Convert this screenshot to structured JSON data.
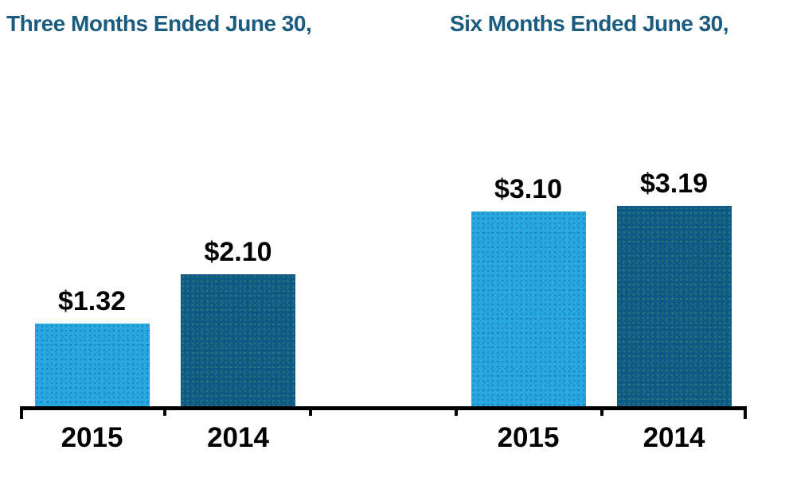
{
  "chart_data": {
    "type": "bar",
    "title": "",
    "xlabel": "",
    "ylabel": "",
    "ylim": [
      0,
      3.5
    ],
    "grid": false,
    "legend": false,
    "value_prefix": "$",
    "groups": [
      {
        "title": "Three Months Ended June 30,",
        "categories": [
          "2015",
          "2014"
        ],
        "bars": [
          {
            "category": "2015",
            "value": 1.32,
            "label": "$1.32",
            "color": "#29A8E0",
            "tone": "light"
          },
          {
            "category": "2014",
            "value": 2.1,
            "label": "$2.10",
            "color": "#0F5A84",
            "tone": "dark"
          }
        ]
      },
      {
        "title": "Six Months Ended June 30,",
        "categories": [
          "2015",
          "2014"
        ],
        "bars": [
          {
            "category": "2015",
            "value": 3.1,
            "label": "$3.10",
            "color": "#29A8E0",
            "tone": "light"
          },
          {
            "category": "2014",
            "value": 3.19,
            "label": "$3.19",
            "color": "#0F5A84",
            "tone": "dark"
          }
        ]
      }
    ]
  },
  "colors": {
    "series_2015": "#29A8E0",
    "series_2014": "#0F5A84",
    "group_title_text": "#1A5B80",
    "value_label_text": "#000000",
    "year_label_text": "#000000",
    "axis": "#000000",
    "background": "#FFFFFF"
  }
}
